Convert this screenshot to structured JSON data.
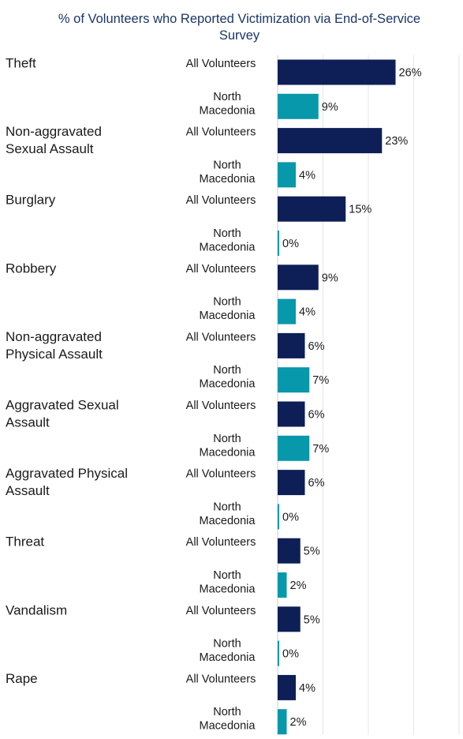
{
  "chart_data": {
    "type": "bar",
    "orientation": "horizontal",
    "title": "% of Volunteers who Reported Victimization via End-of-Service\nSurvey",
    "value_suffix": "%",
    "xlim": [
      0,
      40
    ],
    "grid": true,
    "legend": "none",
    "colors": {
      "title": "#1b3668",
      "All Volunteers": "#0d1f56",
      "North Macedonia": "#0798ab",
      "text": "#1a1a1a",
      "grid": "#e6e6e6",
      "axis": "#cfcfcf"
    },
    "groups": [
      {
        "category": [
          "Theft"
        ],
        "bars": [
          {
            "series": "All Volunteers",
            "label": [
              "All Volunteers"
            ],
            "value": 26
          },
          {
            "series": "North Macedonia",
            "label": [
              "North",
              "Macedonia"
            ],
            "value": 9
          }
        ]
      },
      {
        "category": [
          "Non-aggravated",
          "Sexual Assault"
        ],
        "bars": [
          {
            "series": "All Volunteers",
            "label": [
              "All Volunteers"
            ],
            "value": 23
          },
          {
            "series": "North Macedonia",
            "label": [
              "North",
              "Macedonia"
            ],
            "value": 4
          }
        ]
      },
      {
        "category": [
          "Burglary"
        ],
        "bars": [
          {
            "series": "All Volunteers",
            "label": [
              "All Volunteers"
            ],
            "value": 15
          },
          {
            "series": "North Macedonia",
            "label": [
              "North",
              "Macedonia"
            ],
            "value": 0
          }
        ]
      },
      {
        "category": [
          "Robbery"
        ],
        "bars": [
          {
            "series": "All Volunteers",
            "label": [
              "All Volunteers"
            ],
            "value": 9
          },
          {
            "series": "North Macedonia",
            "label": [
              "North",
              "Macedonia"
            ],
            "value": 4
          }
        ]
      },
      {
        "category": [
          "Non-aggravated",
          "Physical Assault"
        ],
        "bars": [
          {
            "series": "All Volunteers",
            "label": [
              "All Volunteers"
            ],
            "value": 6
          },
          {
            "series": "North Macedonia",
            "label": [
              "North",
              "Macedonia"
            ],
            "value": 7
          }
        ]
      },
      {
        "category": [
          "Aggravated Sexual",
          "Assault"
        ],
        "bars": [
          {
            "series": "All Volunteers",
            "label": [
              "All Volunteers"
            ],
            "value": 6
          },
          {
            "series": "North Macedonia",
            "label": [
              "North",
              "Macedonia"
            ],
            "value": 7
          }
        ]
      },
      {
        "category": [
          "Aggravated Physical",
          "Assault"
        ],
        "bars": [
          {
            "series": "All Volunteers",
            "label": [
              "All Volunteers"
            ],
            "value": 6
          },
          {
            "series": "North Macedonia",
            "label": [
              "North",
              "Macedonia"
            ],
            "value": 0
          }
        ]
      },
      {
        "category": [
          "Threat"
        ],
        "bars": [
          {
            "series": "All Volunteers",
            "label": [
              "All Volunteers"
            ],
            "value": 5
          },
          {
            "series": "North Macedonia",
            "label": [
              "North",
              "Macedonia"
            ],
            "value": 2
          }
        ]
      },
      {
        "category": [
          "Vandalism"
        ],
        "bars": [
          {
            "series": "All Volunteers",
            "label": [
              "All Volunteers"
            ],
            "value": 5
          },
          {
            "series": "North Macedonia",
            "label": [
              "North",
              "Macedonia"
            ],
            "value": 0
          }
        ]
      },
      {
        "category": [
          "Rape"
        ],
        "bars": [
          {
            "series": "All Volunteers",
            "label": [
              "All Volunteers"
            ],
            "value": 4
          },
          {
            "series": "North Macedonia",
            "label": [
              "North",
              "Macedonia"
            ],
            "value": 2
          }
        ]
      }
    ]
  }
}
